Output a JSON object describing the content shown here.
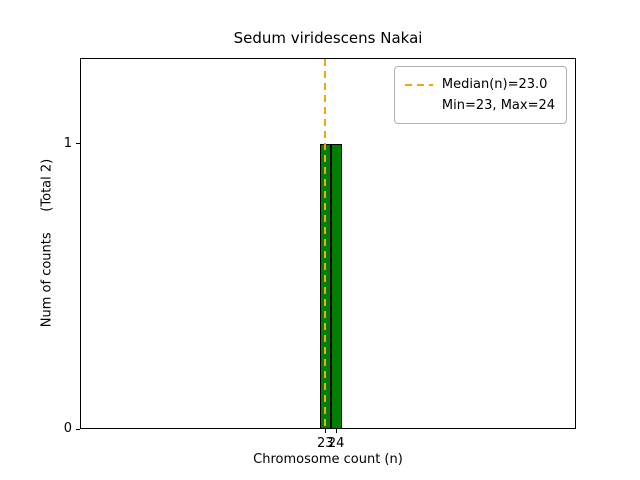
{
  "chart_data": {
    "type": "bar",
    "title": "Sedum viridescens Nakai",
    "xlabel": "Chromosome count (n)",
    "ylabel": "Num of counts     (Total 2)",
    "total_counts": 2,
    "bars": [
      {
        "x": 23,
        "count": 1
      },
      {
        "x": 24,
        "count": 1
      }
    ],
    "bar_width": 1,
    "median": 23.0,
    "min": 23,
    "max": 24,
    "xlim": [
      0.5,
      46
    ],
    "ylim": [
      0,
      1.3
    ],
    "xticks": [
      23,
      24
    ],
    "yticks": [
      0,
      1
    ],
    "grid": false,
    "colors": {
      "bar_fill": "#008000",
      "bar_edge": "#000000",
      "median_line": "#FFA500",
      "axes": "#000000"
    },
    "legend": {
      "position": "upper right",
      "entries": [
        "Median(n)=23.0",
        "Min=23, Max=24"
      ]
    }
  }
}
